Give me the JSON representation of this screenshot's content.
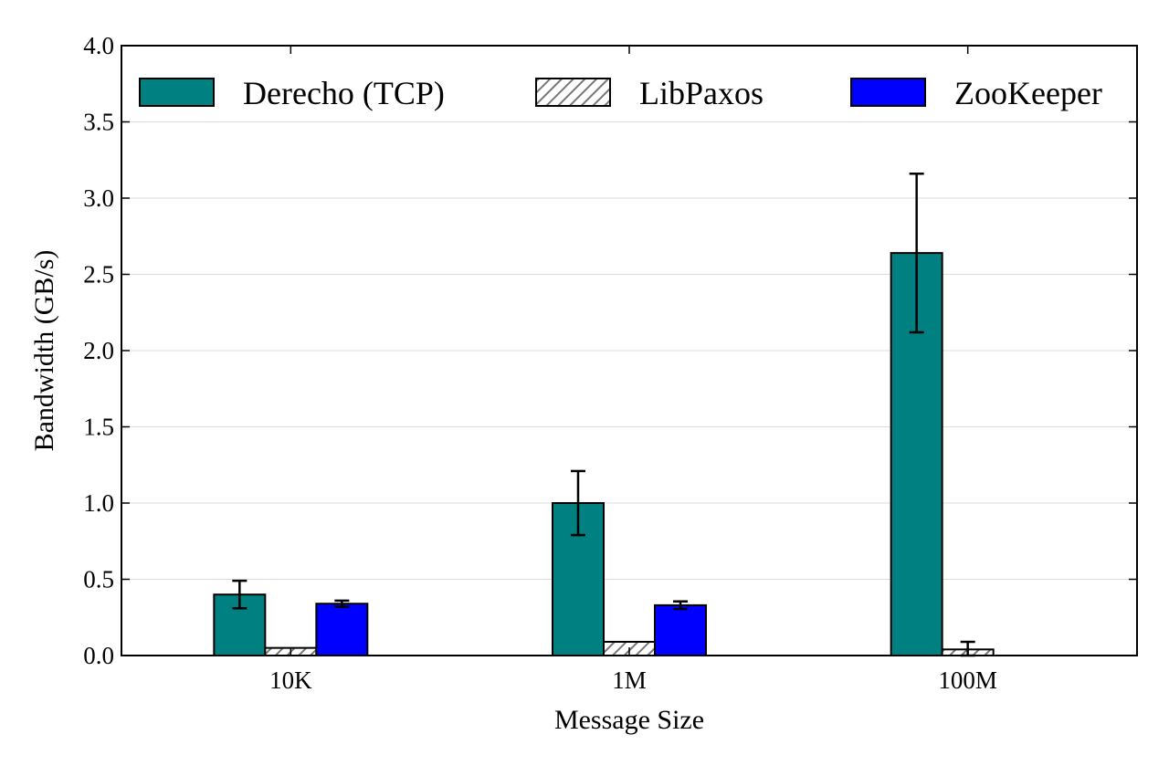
{
  "chart_data": {
    "type": "bar",
    "title": "",
    "xlabel": "Message Size",
    "ylabel": "Bandwidth (GB/s)",
    "ylim": [
      0,
      4.0
    ],
    "yticks": [
      "0.0",
      "0.5",
      "1.0",
      "1.5",
      "2.0",
      "2.5",
      "3.0",
      "3.5",
      "4.0"
    ],
    "grid": "horizontal",
    "legend_position": "top",
    "categories": [
      "10K",
      "1M",
      "100M"
    ],
    "series": [
      {
        "name": "Derecho (TCP)",
        "values": [
          0.4,
          1.0,
          2.64
        ],
        "errors": [
          0.09,
          0.21,
          0.52
        ],
        "color": "#008080",
        "pattern": "solid"
      },
      {
        "name": "LibPaxos",
        "values": [
          0.05,
          0.09,
          0.04
        ],
        "errors": [
          0.0,
          0.0,
          0.05
        ],
        "color": "#ffffff",
        "pattern": "hatch"
      },
      {
        "name": "ZooKeeper",
        "values": [
          0.34,
          0.33,
          null
        ],
        "errors": [
          0.02,
          0.025,
          null
        ],
        "color": "#0000ff",
        "pattern": "solid"
      }
    ]
  }
}
